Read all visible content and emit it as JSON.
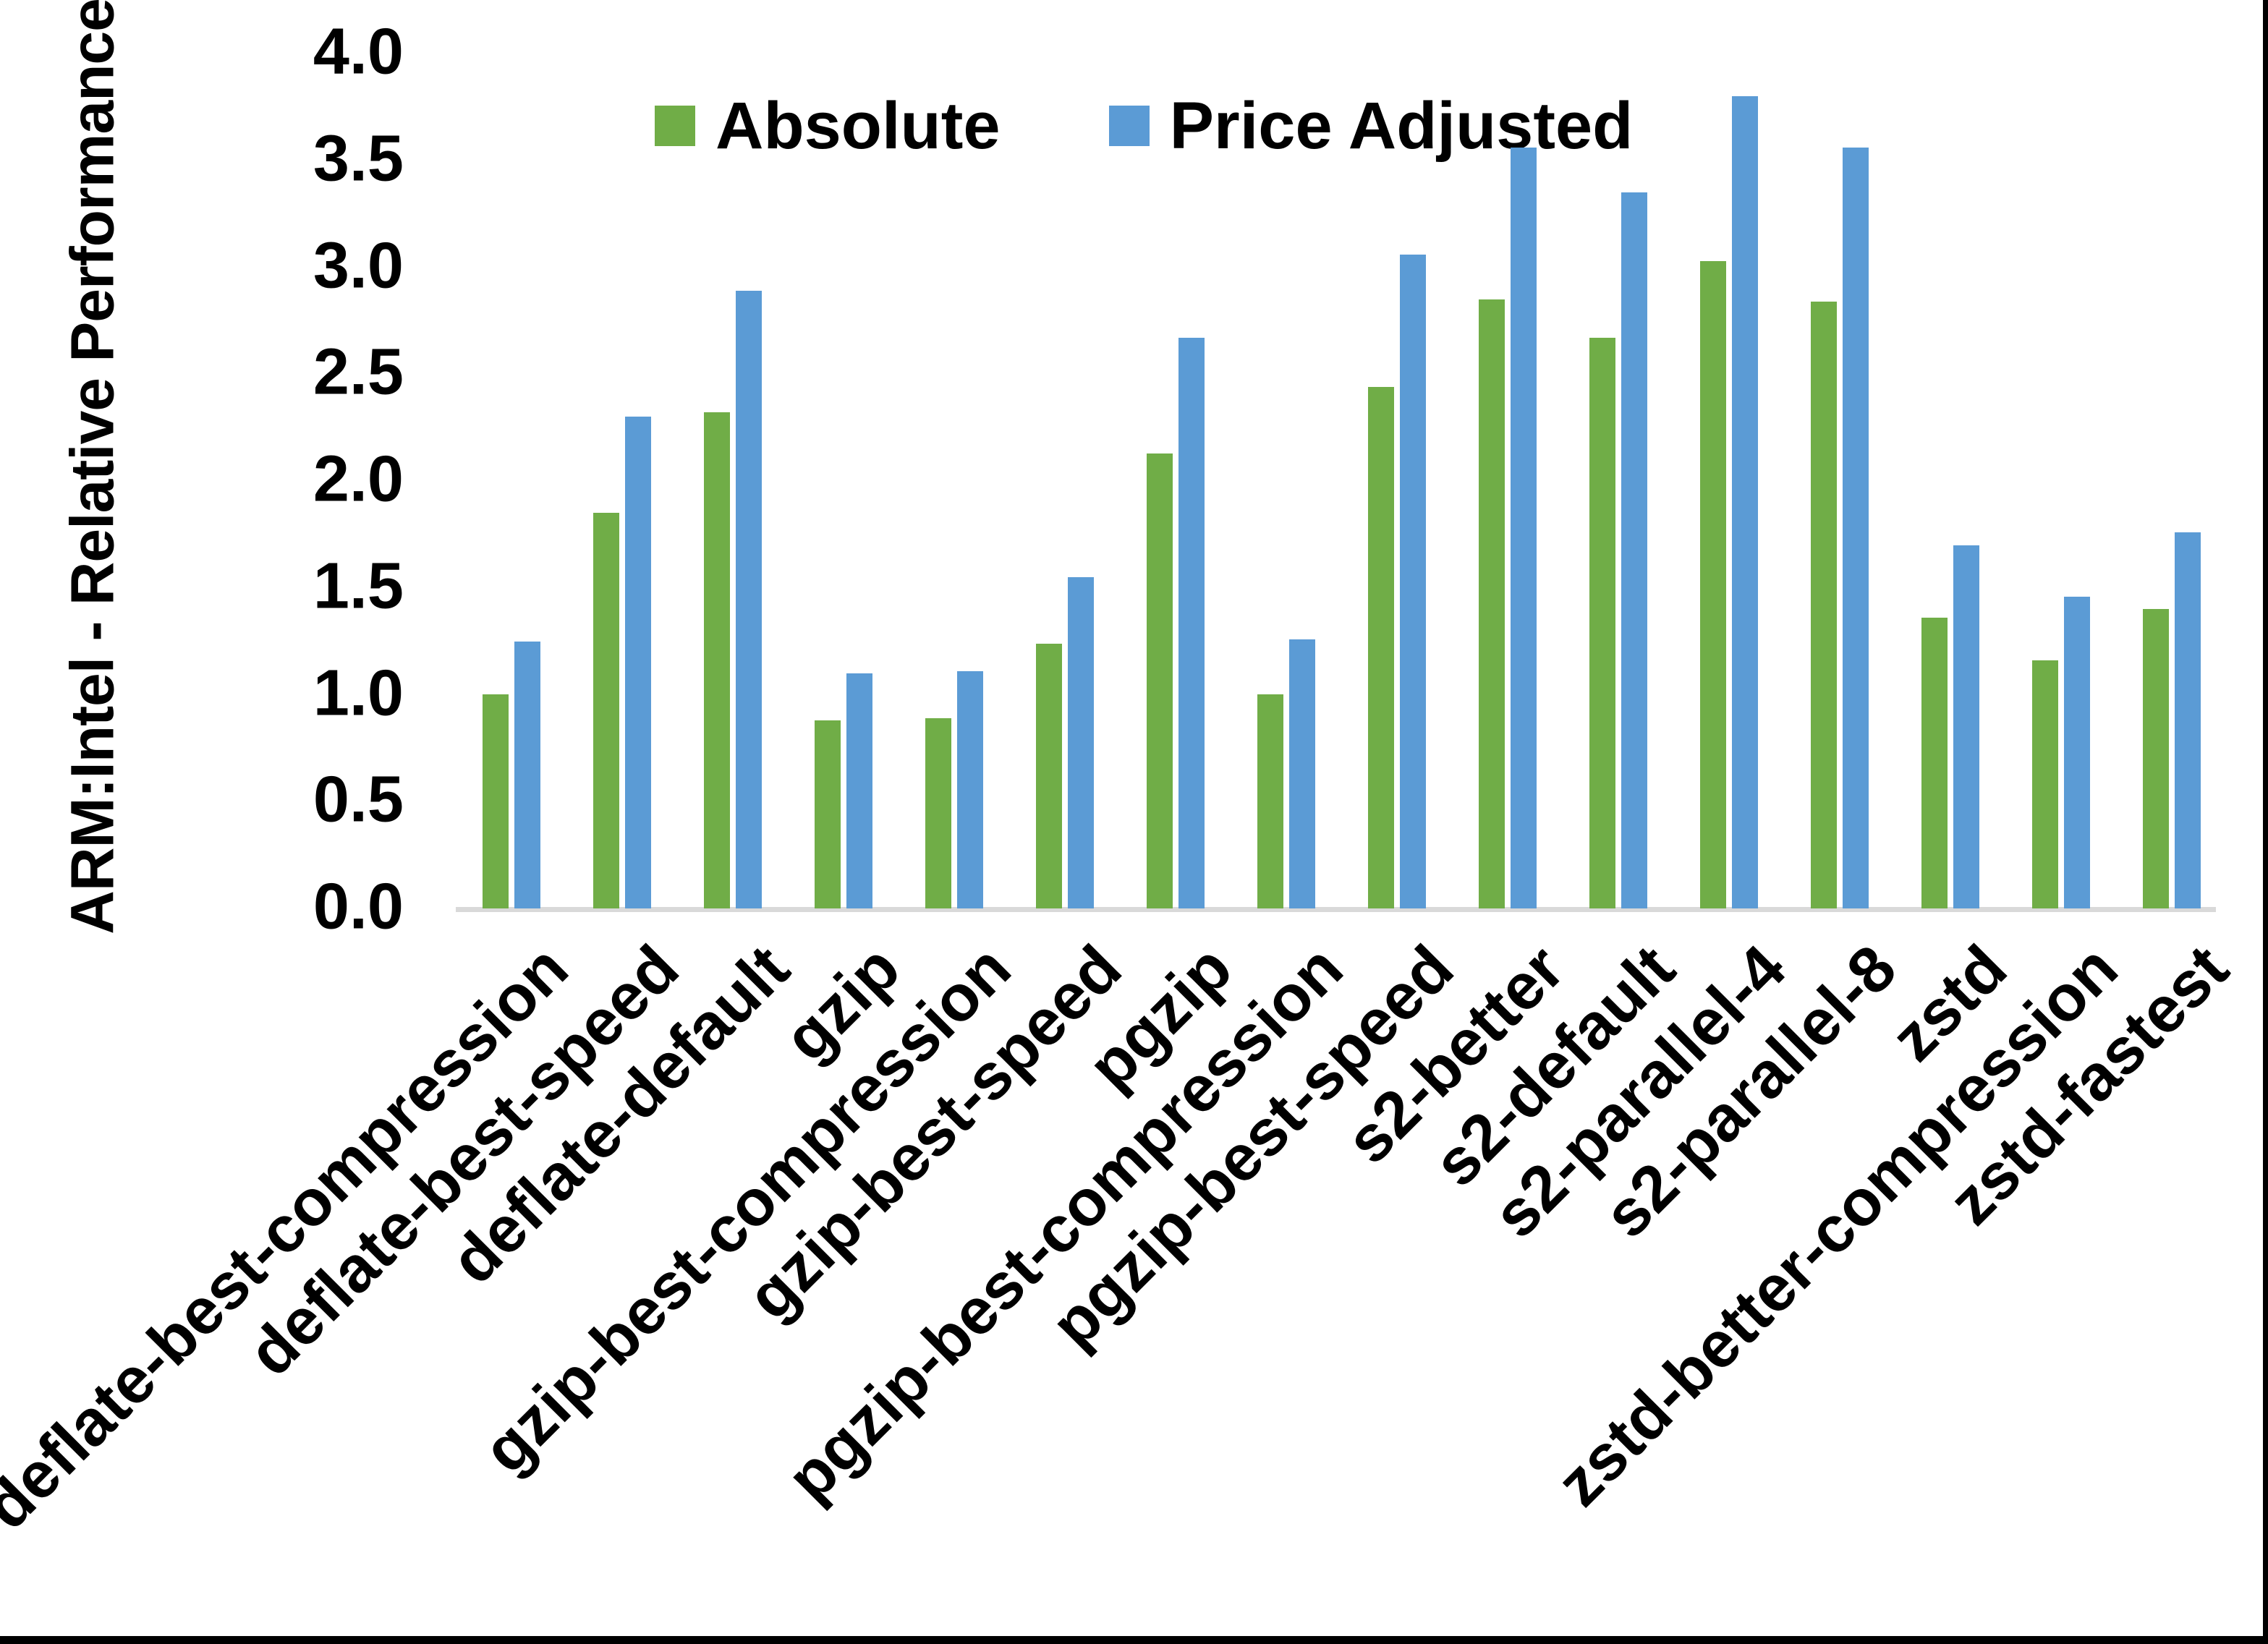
{
  "chart_data": {
    "type": "bar",
    "title": "",
    "ylabel": "ARM:Intel - Relative Performance",
    "xlabel": "",
    "ylim": [
      0.0,
      4.0
    ],
    "ytick_step": 0.5,
    "yticks": [
      "0.0",
      "0.5",
      "1.0",
      "1.5",
      "2.0",
      "2.5",
      "3.0",
      "3.5",
      "4.0"
    ],
    "grid": false,
    "legend_position": "top-center",
    "categories": [
      "deflate-best-compression",
      "deflate-best-speed",
      "deflate-default",
      "gzip",
      "gzip-best-compression",
      "gzip-best-speed",
      "pgzip",
      "pgzip-best-compression",
      "pgzip-best-speed",
      "s2-better",
      "s2-default",
      "s2-parallel-4",
      "s2-parallel-8",
      "zstd",
      "zstd-better-compression",
      "zstd-fastest"
    ],
    "series": [
      {
        "name": "Absolute",
        "color": "#70AD47",
        "values": [
          1.0,
          1.85,
          2.32,
          0.88,
          0.89,
          1.24,
          2.13,
          1.0,
          2.44,
          2.85,
          2.67,
          3.03,
          2.84,
          1.36,
          1.16,
          1.4
        ]
      },
      {
        "name": "Price Adjusted",
        "color": "#5B9BD5",
        "values": [
          1.25,
          2.3,
          2.89,
          1.1,
          1.11,
          1.55,
          2.67,
          1.26,
          3.06,
          3.56,
          3.35,
          3.8,
          3.56,
          1.7,
          1.46,
          1.76
        ]
      }
    ]
  },
  "colors": {
    "axis_line": "#D9D9D9",
    "text": "#000000",
    "background": "#FFFFFF",
    "border": "#000000"
  }
}
